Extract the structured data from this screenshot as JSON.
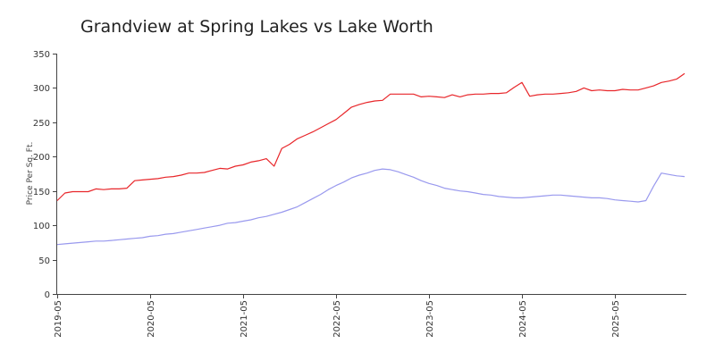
{
  "chart_data": {
    "type": "line",
    "title": "Grandview at Spring Lakes vs Lake Worth",
    "xlabel": "",
    "ylabel": "Price Per Sq. Ft.",
    "ylim": [
      0,
      350
    ],
    "y_ticks": [
      0,
      50,
      100,
      150,
      200,
      250,
      300,
      350
    ],
    "x_ticks": [
      "2019-05",
      "2020-05",
      "2021-05",
      "2022-05",
      "2023-05",
      "2024-05",
      "2025-05"
    ],
    "x_range": [
      "2019-05",
      "2025-12"
    ],
    "grid": false,
    "legend": "none",
    "series": [
      {
        "color": "#e8262a",
        "points": [
          [
            "2019-05",
            136
          ],
          [
            "2019-06",
            147
          ],
          [
            "2019-07",
            149
          ],
          [
            "2019-08",
            149
          ],
          [
            "2019-09",
            149
          ],
          [
            "2019-10",
            153
          ],
          [
            "2019-11",
            152
          ],
          [
            "2019-12",
            153
          ],
          [
            "2020-01",
            153
          ],
          [
            "2020-02",
            154
          ],
          [
            "2020-03",
            165
          ],
          [
            "2020-04",
            166
          ],
          [
            "2020-05",
            167
          ],
          [
            "2020-06",
            168
          ],
          [
            "2020-07",
            170
          ],
          [
            "2020-08",
            171
          ],
          [
            "2020-09",
            173
          ],
          [
            "2020-10",
            176
          ],
          [
            "2020-11",
            176
          ],
          [
            "2020-12",
            177
          ],
          [
            "2021-01",
            180
          ],
          [
            "2021-02",
            183
          ],
          [
            "2021-03",
            182
          ],
          [
            "2021-04",
            186
          ],
          [
            "2021-05",
            188
          ],
          [
            "2021-06",
            192
          ],
          [
            "2021-07",
            194
          ],
          [
            "2021-08",
            197
          ],
          [
            "2021-09",
            186
          ],
          [
            "2021-10",
            212
          ],
          [
            "2021-11",
            218
          ],
          [
            "2021-12",
            226
          ],
          [
            "2022-01",
            231
          ],
          [
            "2022-02",
            236
          ],
          [
            "2022-03",
            242
          ],
          [
            "2022-04",
            248
          ],
          [
            "2022-05",
            254
          ],
          [
            "2022-06",
            263
          ],
          [
            "2022-07",
            272
          ],
          [
            "2022-08",
            276
          ],
          [
            "2022-09",
            279
          ],
          [
            "2022-10",
            281
          ],
          [
            "2022-11",
            282
          ],
          [
            "2022-12",
            291
          ],
          [
            "2023-01",
            291
          ],
          [
            "2023-02",
            291
          ],
          [
            "2023-03",
            291
          ],
          [
            "2023-04",
            287
          ],
          [
            "2023-05",
            288
          ],
          [
            "2023-06",
            287
          ],
          [
            "2023-07",
            286
          ],
          [
            "2023-08",
            290
          ],
          [
            "2023-09",
            287
          ],
          [
            "2023-10",
            290
          ],
          [
            "2023-11",
            291
          ],
          [
            "2023-12",
            291
          ],
          [
            "2024-01",
            292
          ],
          [
            "2024-02",
            292
          ],
          [
            "2024-03",
            293
          ],
          [
            "2024-04",
            301
          ],
          [
            "2024-05",
            308
          ],
          [
            "2024-06",
            288
          ],
          [
            "2024-07",
            290
          ],
          [
            "2024-08",
            291
          ],
          [
            "2024-09",
            291
          ],
          [
            "2024-10",
            292
          ],
          [
            "2024-11",
            293
          ],
          [
            "2024-12",
            295
          ],
          [
            "2025-01",
            300
          ],
          [
            "2025-02",
            296
          ],
          [
            "2025-03",
            297
          ],
          [
            "2025-04",
            296
          ],
          [
            "2025-05",
            296
          ],
          [
            "2025-06",
            298
          ],
          [
            "2025-07",
            297
          ],
          [
            "2025-08",
            297
          ],
          [
            "2025-09",
            300
          ],
          [
            "2025-10",
            303
          ],
          [
            "2025-11",
            308
          ],
          [
            "2025-12",
            310
          ],
          [
            "2026-01",
            313
          ],
          [
            "2026-02",
            321
          ]
        ]
      },
      {
        "color": "#9999ee",
        "points": [
          [
            "2019-05",
            72
          ],
          [
            "2019-06",
            73
          ],
          [
            "2019-07",
            74
          ],
          [
            "2019-08",
            75
          ],
          [
            "2019-09",
            76
          ],
          [
            "2019-10",
            77
          ],
          [
            "2019-11",
            77
          ],
          [
            "2019-12",
            78
          ],
          [
            "2020-01",
            79
          ],
          [
            "2020-02",
            80
          ],
          [
            "2020-03",
            81
          ],
          [
            "2020-04",
            82
          ],
          [
            "2020-05",
            84
          ],
          [
            "2020-06",
            85
          ],
          [
            "2020-07",
            87
          ],
          [
            "2020-08",
            88
          ],
          [
            "2020-09",
            90
          ],
          [
            "2020-10",
            92
          ],
          [
            "2020-11",
            94
          ],
          [
            "2020-12",
            96
          ],
          [
            "2021-01",
            98
          ],
          [
            "2021-02",
            100
          ],
          [
            "2021-03",
            103
          ],
          [
            "2021-04",
            104
          ],
          [
            "2021-05",
            106
          ],
          [
            "2021-06",
            108
          ],
          [
            "2021-07",
            111
          ],
          [
            "2021-08",
            113
          ],
          [
            "2021-09",
            116
          ],
          [
            "2021-10",
            119
          ],
          [
            "2021-11",
            123
          ],
          [
            "2021-12",
            127
          ],
          [
            "2022-01",
            133
          ],
          [
            "2022-02",
            139
          ],
          [
            "2022-03",
            145
          ],
          [
            "2022-04",
            152
          ],
          [
            "2022-05",
            158
          ],
          [
            "2022-06",
            163
          ],
          [
            "2022-07",
            169
          ],
          [
            "2022-08",
            173
          ],
          [
            "2022-09",
            176
          ],
          [
            "2022-10",
            180
          ],
          [
            "2022-11",
            182
          ],
          [
            "2022-12",
            181
          ],
          [
            "2023-01",
            178
          ],
          [
            "2023-02",
            174
          ],
          [
            "2023-03",
            170
          ],
          [
            "2023-04",
            165
          ],
          [
            "2023-05",
            161
          ],
          [
            "2023-06",
            158
          ],
          [
            "2023-07",
            154
          ],
          [
            "2023-08",
            152
          ],
          [
            "2023-09",
            150
          ],
          [
            "2023-10",
            149
          ],
          [
            "2023-11",
            147
          ],
          [
            "2023-12",
            145
          ],
          [
            "2024-01",
            144
          ],
          [
            "2024-02",
            142
          ],
          [
            "2024-03",
            141
          ],
          [
            "2024-04",
            140
          ],
          [
            "2024-05",
            140
          ],
          [
            "2024-06",
            141
          ],
          [
            "2024-07",
            142
          ],
          [
            "2024-08",
            143
          ],
          [
            "2024-09",
            144
          ],
          [
            "2024-10",
            144
          ],
          [
            "2024-11",
            143
          ],
          [
            "2024-12",
            142
          ],
          [
            "2025-01",
            141
          ],
          [
            "2025-02",
            140
          ],
          [
            "2025-03",
            140
          ],
          [
            "2025-04",
            139
          ],
          [
            "2025-05",
            137
          ],
          [
            "2025-06",
            136
          ],
          [
            "2025-07",
            135
          ],
          [
            "2025-08",
            134
          ],
          [
            "2025-09",
            136
          ],
          [
            "2025-10",
            157
          ],
          [
            "2025-11",
            176
          ],
          [
            "2025-12",
            174
          ],
          [
            "2026-01",
            172
          ],
          [
            "2026-02",
            171
          ]
        ]
      }
    ]
  }
}
